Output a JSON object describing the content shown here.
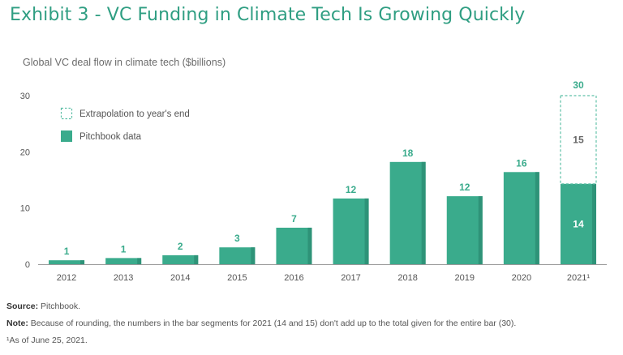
{
  "title": "Exhibit 3 - VC Funding in Climate Tech Is Growing Quickly",
  "subtitle": "Global VC deal flow in climate tech ($billions)",
  "colors": {
    "bar": "#3aab8c",
    "bar_shade": "#2e9378",
    "extrapolation": "#5dbfa6",
    "title": "#2f9e82"
  },
  "chart_data": {
    "type": "bar",
    "categories": [
      "2012",
      "2013",
      "2014",
      "2015",
      "2016",
      "2017",
      "2018",
      "2019",
      "2020",
      "2021¹"
    ],
    "series": [
      {
        "name": "Pitchbook data",
        "values": [
          1,
          1,
          2,
          3,
          7,
          12,
          18,
          12,
          16,
          14
        ]
      },
      {
        "name": "Extrapolation to year's end",
        "values": [
          null,
          null,
          null,
          null,
          null,
          null,
          null,
          null,
          null,
          15
        ]
      }
    ],
    "bar_display_values": [
      0.7,
      1.1,
      1.6,
      3.0,
      6.5,
      11.7,
      18.2,
      12.1,
      16.4,
      14.3
    ],
    "data_labels": [
      "1",
      "1",
      "2",
      "3",
      "7",
      "12",
      "18",
      "12",
      "16",
      "14"
    ],
    "extrapolation_label": "15",
    "total_label": "30",
    "total_value": 30,
    "ylim": [
      0,
      30
    ],
    "yticks": [
      0,
      10,
      20,
      30
    ],
    "legend": [
      "Extrapolation to year's end",
      "Pitchbook data"
    ],
    "legend_position": "top-left",
    "xlabel": "",
    "ylabel": ""
  },
  "footnotes": {
    "source_label": "Source:",
    "source_text": " Pitchbook.",
    "note_label": "Note:",
    "note_text": " Because of rounding, the numbers in the bar segments for 2021 (14 and 15) don't add up to the total given for the entire bar (30).",
    "asof_text": "¹As of June 25, 2021."
  }
}
